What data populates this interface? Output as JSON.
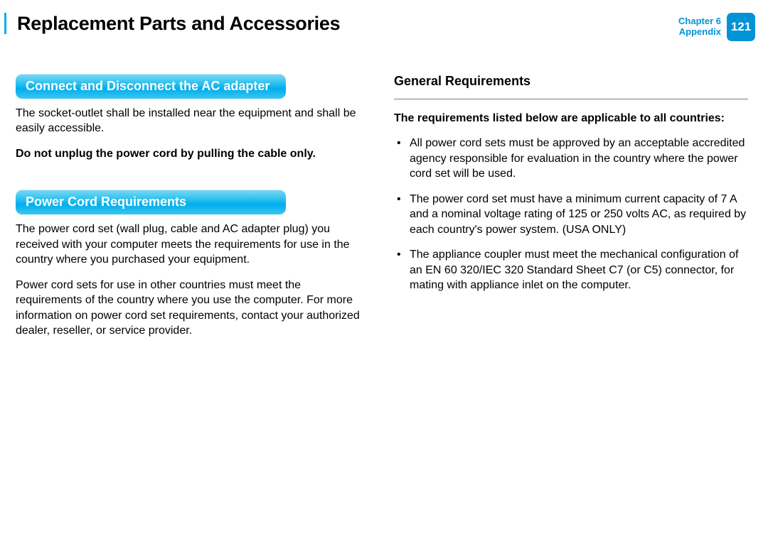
{
  "header": {
    "title": "Replacement Parts and Accessories",
    "chapter_line1": "Chapter 6",
    "chapter_line2": "Appendix",
    "page_number": "121"
  },
  "left": {
    "section1": {
      "heading": "Connect and Disconnect the AC adapter",
      "para1": "The socket-outlet shall be installed near the equipment and shall be easily accessible.",
      "bold": "Do not unplug the power cord by pulling the cable only."
    },
    "section2": {
      "heading": "Power Cord Requirements",
      "para1": "The power cord set (wall plug, cable and AC adapter plug) you received with your computer meets the requirements for use in the country where you purchased your equipment.",
      "para2": "Power cord sets for use in other countries must meet the requirements of the country where you use the computer. For more information on power cord set requirements, contact your authorized dealer, reseller, or service provider."
    }
  },
  "right": {
    "heading": "General Requirements",
    "intro_bold": "The requirements listed below are applicable to all countries:",
    "bullets": [
      "All power cord sets must be approved by an acceptable accredited agency responsible for evaluation in the country where the power cord set will be used.",
      "The power cord set must have a minimum current capacity of 7 A and a nominal voltage rating of 125 or 250 volts AC, as required by each country's power system. (USA ONLY)",
      "The appliance coupler must meet the mechanical configuration of an EN 60 320/IEC 320 Standard Sheet C7 (or C5) connector, for mating with appliance inlet on the computer."
    ]
  },
  "style": {
    "accent_color": "#00adee",
    "badge_color": "#0093d6",
    "text_color": "#000000",
    "divider_color": "#7d7d7d"
  }
}
